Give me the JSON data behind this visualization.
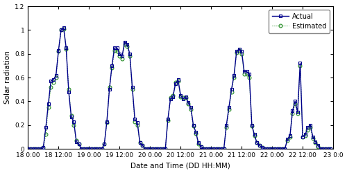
{
  "title": "",
  "xlabel": "Date and Time (DD HH:MM)",
  "ylabel": "Solar radiation",
  "ylim": [
    0,
    1.2
  ],
  "yticks": [
    0,
    0.2,
    0.4,
    0.6,
    0.8,
    1.0,
    1.2
  ],
  "actual_color": "#00008B",
  "estimated_color": "#228B22",
  "actual_marker": "s",
  "estimated_marker": "o",
  "actual_linestyle": "-",
  "estimated_linestyle": ":",
  "linewidth_actual": 1.0,
  "linewidth_estimated": 0.8,
  "markersize": 3.5,
  "legend_actual": "Actual",
  "legend_estimated": "Estimated",
  "xtick_labels": [
    "18 0:00",
    "18 12:00",
    "19 0:00",
    "19 12:00",
    "20 0:00",
    "20 12:00",
    "21 0:00",
    "21 12:00",
    "22 0:00",
    "22 12:00",
    "23 0:0"
  ],
  "time_hours": [
    0,
    1,
    2,
    3,
    4,
    5,
    6,
    7,
    8,
    9,
    10,
    11,
    12,
    13,
    14,
    15,
    16,
    17,
    18,
    19,
    20,
    21,
    22,
    23,
    24,
    25,
    26,
    27,
    28,
    29,
    30,
    31,
    32,
    33,
    34,
    35,
    36,
    37,
    38,
    39,
    40,
    41,
    42,
    43,
    44,
    45,
    46,
    47,
    48,
    49,
    50,
    51,
    52,
    53,
    54,
    55,
    56,
    57,
    58,
    59,
    60,
    61,
    62,
    63,
    64,
    65,
    66,
    67,
    68,
    69,
    70,
    71,
    72,
    73,
    74,
    75,
    76,
    77,
    78,
    79,
    80,
    81,
    82,
    83,
    84,
    85,
    86,
    87,
    88,
    89,
    90,
    91,
    92,
    93,
    94,
    95,
    96,
    97,
    98,
    99,
    100,
    101,
    102,
    103,
    104,
    105,
    106,
    107,
    108,
    109,
    110,
    111,
    112,
    113,
    114,
    115,
    116,
    117,
    118,
    119
  ],
  "actual_values": [
    0.0,
    0.0,
    0.0,
    0.0,
    0.0,
    0.0,
    0.01,
    0.18,
    0.38,
    0.57,
    0.58,
    0.62,
    0.83,
    1.0,
    1.02,
    0.85,
    0.48,
    0.27,
    0.23,
    0.06,
    0.04,
    0.0,
    0.0,
    0.0,
    0.0,
    0.0,
    0.0,
    0.0,
    0.0,
    0.0,
    0.04,
    0.23,
    0.5,
    0.7,
    0.85,
    0.85,
    0.8,
    0.78,
    0.9,
    0.88,
    0.8,
    0.52,
    0.25,
    0.22,
    0.05,
    0.03,
    0.0,
    0.0,
    0.0,
    0.0,
    0.0,
    0.0,
    0.0,
    0.0,
    0.0,
    0.25,
    0.42,
    0.44,
    0.55,
    0.58,
    0.45,
    0.42,
    0.44,
    0.39,
    0.35,
    0.2,
    0.14,
    0.05,
    0.02,
    0.0,
    0.0,
    0.0,
    0.0,
    0.0,
    0.0,
    0.0,
    0.0,
    0.0,
    0.2,
    0.35,
    0.5,
    0.62,
    0.82,
    0.84,
    0.82,
    0.65,
    0.65,
    0.63,
    0.2,
    0.12,
    0.05,
    0.03,
    0.01,
    0.0,
    0.0,
    0.0,
    0.0,
    0.0,
    0.0,
    0.0,
    0.0,
    0.0,
    0.08,
    0.11,
    0.32,
    0.4,
    0.31,
    0.72,
    0.1,
    0.12,
    0.18,
    0.2,
    0.1,
    0.06,
    0.03,
    0.0,
    0.0,
    0.0,
    0.0,
    0.0
  ],
  "estimated_values": [
    0.0,
    0.0,
    0.0,
    0.0,
    0.0,
    0.0,
    0.01,
    0.12,
    0.35,
    0.52,
    0.56,
    0.6,
    0.82,
    1.0,
    1.01,
    0.84,
    0.5,
    0.28,
    0.2,
    0.07,
    0.04,
    0.0,
    0.0,
    0.0,
    0.0,
    0.0,
    0.0,
    0.0,
    0.0,
    0.0,
    0.04,
    0.22,
    0.52,
    0.68,
    0.83,
    0.82,
    0.78,
    0.76,
    0.88,
    0.86,
    0.78,
    0.5,
    0.23,
    0.2,
    0.05,
    0.03,
    0.0,
    0.0,
    0.0,
    0.0,
    0.0,
    0.0,
    0.0,
    0.0,
    0.0,
    0.24,
    0.43,
    0.45,
    0.56,
    0.57,
    0.44,
    0.43,
    0.43,
    0.38,
    0.33,
    0.19,
    0.13,
    0.04,
    0.02,
    0.0,
    0.0,
    0.0,
    0.0,
    0.0,
    0.0,
    0.0,
    0.0,
    0.0,
    0.18,
    0.33,
    0.48,
    0.6,
    0.81,
    0.83,
    0.8,
    0.63,
    0.63,
    0.6,
    0.19,
    0.11,
    0.05,
    0.03,
    0.01,
    0.0,
    0.0,
    0.0,
    0.0,
    0.0,
    0.0,
    0.0,
    0.0,
    0.0,
    0.07,
    0.1,
    0.3,
    0.38,
    0.3,
    0.7,
    0.1,
    0.11,
    0.16,
    0.18,
    0.09,
    0.05,
    0.02,
    0.0,
    0.0,
    0.0,
    0.0,
    0.0
  ],
  "xtick_positions": [
    0,
    12,
    24,
    36,
    48,
    60,
    72,
    84,
    96,
    108,
    120
  ],
  "fig_bg_color": "#ffffff",
  "axes_bg_color": "#ffffff",
  "figsize": [
    5.0,
    2.5
  ],
  "dpi": 100
}
